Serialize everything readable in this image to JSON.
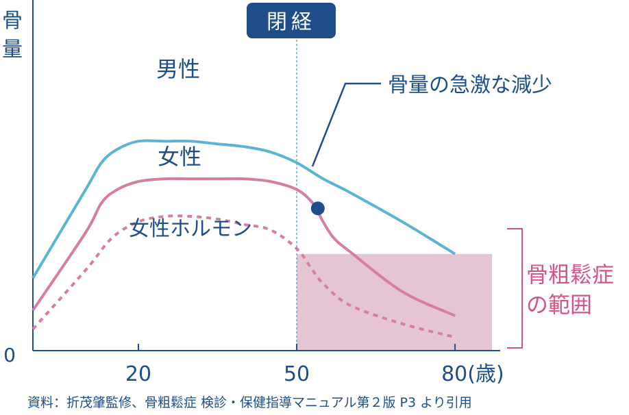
{
  "chart_data": {
    "type": "line",
    "ylabel": "骨量",
    "y_zero_label": "0",
    "x_ticks": [
      "20",
      "50",
      "80(歳)"
    ],
    "menopause_label": "閉経",
    "annotation": "骨量の急激な減少",
    "osteoporosis_range_label": [
      "骨粗鬆症",
      "の範囲"
    ],
    "series": [
      {
        "name": "男性",
        "style": "solid",
        "color": "#5ab4d3",
        "x": [
          0,
          10,
          13,
          16,
          20,
          25,
          30,
          35,
          40,
          45,
          50,
          55,
          60,
          70,
          80
        ],
        "y": [
          0.27,
          0.6,
          0.7,
          0.75,
          0.78,
          0.78,
          0.78,
          0.77,
          0.76,
          0.74,
          0.7,
          0.64,
          0.59,
          0.48,
          0.36
        ]
      },
      {
        "name": "女性",
        "style": "solid",
        "color": "#d47ea3",
        "x": [
          0,
          10,
          13,
          16,
          20,
          25,
          30,
          35,
          40,
          45,
          50,
          53,
          55,
          57,
          60,
          70,
          80
        ],
        "y": [
          0.15,
          0.44,
          0.55,
          0.6,
          0.63,
          0.64,
          0.64,
          0.64,
          0.64,
          0.63,
          0.6,
          0.55,
          0.48,
          0.42,
          0.37,
          0.22,
          0.13
        ]
      },
      {
        "name": "女性ホルモン",
        "style": "dashed",
        "color": "#d47ea3",
        "x": [
          0,
          10,
          15,
          20,
          25,
          30,
          35,
          40,
          45,
          50,
          53,
          55,
          60,
          70,
          80
        ],
        "y": [
          0.08,
          0.3,
          0.42,
          0.48,
          0.5,
          0.5,
          0.49,
          0.47,
          0.45,
          0.38,
          0.3,
          0.25,
          0.17,
          0.1,
          0.05
        ]
      }
    ],
    "menopause_x": 50,
    "rapid_decline_point": {
      "x": 54,
      "y": 0.53
    },
    "osteoporosis_zone": {
      "x_from": 50,
      "x_to": 87,
      "y_max": 0.36,
      "color": "#e5c4d3"
    },
    "xlim": [
      0,
      87
    ],
    "ylim": [
      0,
      1.0
    ]
  },
  "source_note": "資料：折茂肇監修、骨粗鬆症 検診・保健指導マニュアル第２版 P3 より引用",
  "colors": {
    "text_blue": "#1d4e89",
    "men": "#5ab4d3",
    "women": "#d47ea3",
    "zone": "#e5c4d3",
    "bracket": "#d4548a"
  }
}
